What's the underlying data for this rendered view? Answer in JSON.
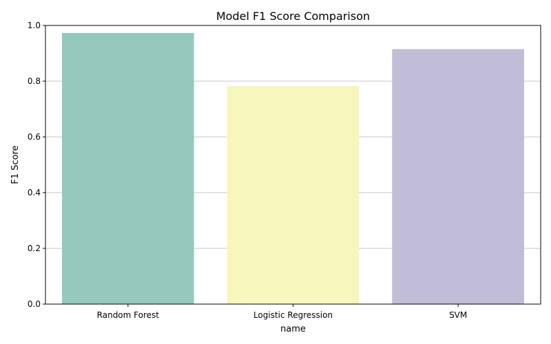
{
  "chart_data": {
    "type": "bar",
    "title": "Model F1 Score Comparison",
    "xlabel": "name",
    "ylabel": "F1 Score",
    "categories": [
      "Random Forest",
      "Logistic Regression",
      "SVM"
    ],
    "values": [
      0.973,
      0.783,
      0.915
    ],
    "ylim": [
      0,
      1
    ],
    "yticks": [
      "0.0",
      "0.2",
      "0.4",
      "0.6",
      "0.8",
      "1.0"
    ],
    "grid": "horizontal",
    "colors": [
      "#96c8be",
      "#f6f6bd",
      "#c1bdd6"
    ],
    "grid_color": "#b0b0b0"
  }
}
